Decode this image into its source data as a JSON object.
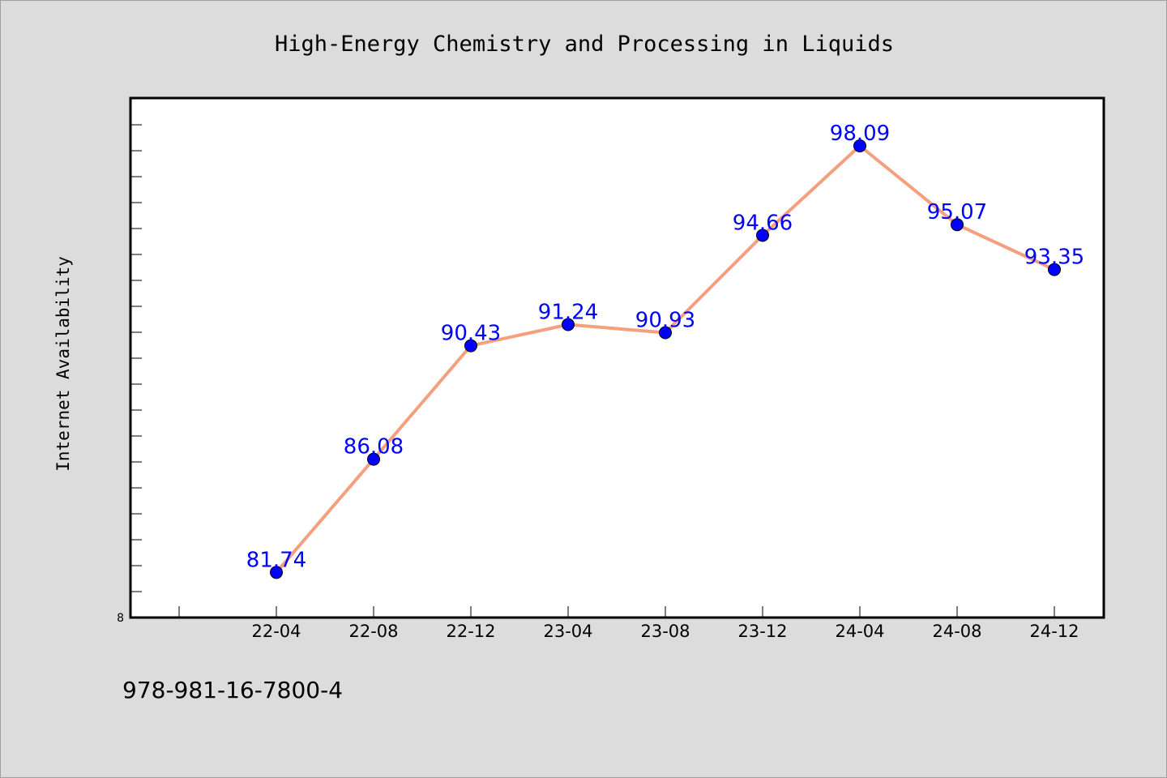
{
  "chart_data": {
    "type": "line",
    "title": "High-Energy Chemistry and Processing in Liquids",
    "ylabel": "Internet Availability",
    "xlabel": "",
    "categories": [
      "22-04",
      "22-08",
      "22-12",
      "23-04",
      "23-08",
      "23-12",
      "24-04",
      "24-08",
      "24-12"
    ],
    "values": [
      81.74,
      86.08,
      90.43,
      91.24,
      90.93,
      94.66,
      98.09,
      95.07,
      93.35
    ],
    "data_labels": [
      "81.74",
      "86.08",
      "90.43",
      "91.24",
      "90.93",
      "94.66",
      "98.09",
      "95.07",
      "93.35"
    ],
    "ytick_label": "8",
    "ylim": [
      80,
      100
    ],
    "grid": false,
    "legend": "none",
    "colors": {
      "line": "#f4a07f",
      "marker": "#0000ff",
      "label": "#0000ff",
      "plot_background": "#ffffff",
      "page_background": "#dcdcdc"
    }
  },
  "footer": {
    "code": "978-981-16-7800-4"
  }
}
